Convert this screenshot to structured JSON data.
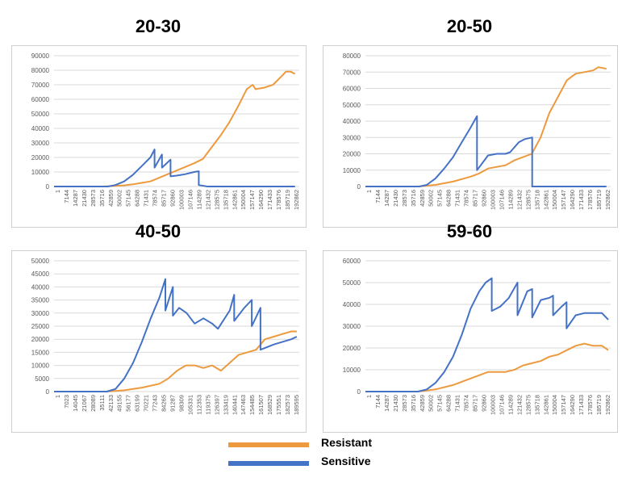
{
  "colors": {
    "resistant": "#ED9A3E",
    "sensitive": "#4472C4",
    "grid": "#D9D9D9",
    "axis": "#595959"
  },
  "legend": [
    {
      "label": "Resistant",
      "color": "#ED9A3E"
    },
    {
      "label": "Sensitive",
      "color": "#4472C4"
    }
  ],
  "chart_data": [
    {
      "type": "line",
      "title": "20-30",
      "xlabel": "",
      "ylabel": "",
      "grid": true,
      "ylim": [
        0,
        90000
      ],
      "yticks": [
        0,
        10000,
        20000,
        30000,
        40000,
        50000,
        60000,
        70000,
        80000,
        90000
      ],
      "x_range": [
        1,
        200000
      ],
      "x_tick_labels": [
        "1",
        "7144",
        "14287",
        "21430",
        "28573",
        "35716",
        "42859",
        "50002",
        "57145",
        "64288",
        "71431",
        "78574",
        "85717",
        "92860",
        "100003",
        "107146",
        "114289",
        "121432",
        "128575",
        "135718",
        "142861",
        "150004",
        "157147",
        "164290",
        "171433",
        "178576",
        "185719",
        "192862"
      ],
      "series": [
        {
          "name": "Resistant",
          "color": "#ED9A3E",
          "x": [
            1,
            40000,
            57145,
            64288,
            71431,
            78574,
            85717,
            92860,
            100003,
            107146,
            114289,
            121432,
            128575,
            135718,
            142861,
            150004,
            157147,
            162000,
            164290,
            171433,
            178576,
            185719,
            189000,
            193000,
            196500
          ],
          "y": [
            0,
            0,
            800,
            1500,
            2500,
            3500,
            6000,
            8500,
            11000,
            13500,
            16000,
            19000,
            27000,
            35000,
            44000,
            55000,
            67000,
            70000,
            67000,
            68000,
            70000,
            76000,
            79000,
            79000,
            77500
          ]
        },
        {
          "name": "Sensitive",
          "color": "#4472C4",
          "x": [
            1,
            44000,
            50002,
            57145,
            64288,
            71431,
            78574,
            82000,
            82001,
            88000,
            88001,
            95000,
            95001,
            100003,
            107146,
            114289,
            118000,
            118001,
            125000,
            128575,
            196500
          ],
          "y": [
            0,
            0,
            1000,
            3500,
            8000,
            14000,
            20000,
            25500,
            13000,
            22000,
            13000,
            18500,
            7000,
            7500,
            8500,
            10000,
            10500,
            1000,
            0,
            0,
            0
          ]
        }
      ]
    },
    {
      "type": "line",
      "title": "20-50",
      "xlabel": "",
      "ylabel": "",
      "grid": true,
      "ylim": [
        0,
        80000
      ],
      "yticks": [
        0,
        10000,
        20000,
        30000,
        40000,
        50000,
        60000,
        70000,
        80000
      ],
      "x_range": [
        1,
        200000
      ],
      "x_tick_labels": [
        "1",
        "7144",
        "14287",
        "21430",
        "28573",
        "35716",
        "42859",
        "50002",
        "57145",
        "64288",
        "71431",
        "78574",
        "85717",
        "92860",
        "100003",
        "107146",
        "114289",
        "121432",
        "128575",
        "135718",
        "142861",
        "150004",
        "157147",
        "164290",
        "171433",
        "178576",
        "185719",
        "192862"
      ],
      "series": [
        {
          "name": "Resistant",
          "color": "#ED9A3E",
          "x": [
            1,
            42859,
            57145,
            71431,
            85717,
            92860,
            100003,
            107146,
            114289,
            121432,
            128575,
            135718,
            142861,
            150004,
            157147,
            164290,
            171433,
            178576,
            185719,
            190000,
            196500
          ],
          "y": [
            0,
            0,
            1000,
            3000,
            6000,
            8000,
            11000,
            12000,
            13000,
            16000,
            18000,
            20000,
            30000,
            45000,
            55000,
            65000,
            69000,
            70000,
            71000,
            73000,
            72000
          ]
        },
        {
          "name": "Sensitive",
          "color": "#4472C4",
          "x": [
            1,
            44000,
            50002,
            57145,
            64288,
            71431,
            78574,
            85717,
            91000,
            91001,
            100003,
            107146,
            114289,
            118000,
            125000,
            130000,
            136000,
            136001,
            150004,
            151000,
            196500
          ],
          "y": [
            0,
            0,
            1000,
            5000,
            11000,
            18000,
            27000,
            36000,
            43000,
            10000,
            19000,
            20000,
            20000,
            21000,
            27000,
            29000,
            30000,
            0,
            0,
            0,
            0
          ]
        }
      ]
    },
    {
      "type": "line",
      "title": "40-50",
      "xlabel": "",
      "ylabel": "",
      "grid": true,
      "ylim": [
        0,
        50000
      ],
      "yticks": [
        0,
        5000,
        10000,
        15000,
        20000,
        25000,
        30000,
        35000,
        40000,
        45000,
        50000
      ],
      "x_range": [
        1,
        196000
      ],
      "x_tick_labels": [
        "1",
        "7023",
        "14045",
        "21067",
        "28089",
        "35111",
        "42133",
        "49155",
        "56177",
        "63199",
        "70221",
        "77243",
        "84265",
        "91287",
        "98309",
        "105331",
        "112353",
        "119375",
        "126397",
        "133419",
        "140441",
        "147463",
        "154485",
        "161507",
        "168529",
        "175551",
        "182573",
        "189595"
      ],
      "series": [
        {
          "name": "Resistant",
          "color": "#ED9A3E",
          "x": [
            1,
            42133,
            56177,
            70221,
            84265,
            91287,
            98309,
            105331,
            112353,
            119375,
            126397,
            133419,
            140441,
            147463,
            154485,
            161507,
            168529,
            175551,
            182573,
            189595,
            194000
          ],
          "y": [
            0,
            0,
            500,
            1500,
            3000,
            5000,
            8000,
            10000,
            10000,
            9000,
            10000,
            8000,
            11000,
            14000,
            15000,
            16000,
            20000,
            21000,
            22000,
            23000,
            23000
          ]
        },
        {
          "name": "Sensitive",
          "color": "#4472C4",
          "x": [
            1,
            42133,
            49155,
            56177,
            63199,
            70221,
            77243,
            84265,
            89000,
            89001,
            95000,
            95001,
            100000,
            106000,
            112353,
            119375,
            126397,
            131000,
            140441,
            144000,
            144001,
            152000,
            158000,
            158001,
            165000,
            165001,
            175551,
            182573,
            189595,
            194000
          ],
          "y": [
            0,
            0,
            1000,
            5000,
            11000,
            19000,
            28000,
            36000,
            43000,
            31000,
            40000,
            29000,
            32000,
            30000,
            26000,
            28000,
            26000,
            24000,
            31000,
            37000,
            27000,
            32000,
            35000,
            25000,
            32000,
            16000,
            18000,
            19000,
            20000,
            21000
          ]
        }
      ]
    },
    {
      "type": "line",
      "title": "59-60",
      "xlabel": "",
      "ylabel": "",
      "grid": true,
      "ylim": [
        0,
        60000
      ],
      "yticks": [
        0,
        10000,
        20000,
        30000,
        40000,
        50000,
        60000
      ],
      "x_range": [
        1,
        200000
      ],
      "x_tick_labels": [
        "1",
        "7144",
        "14287",
        "21430",
        "28573",
        "35716",
        "42859",
        "50002",
        "57145",
        "64288",
        "71431",
        "78574",
        "85717",
        "92860",
        "100003",
        "107146",
        "114289",
        "121432",
        "128575",
        "135718",
        "142861",
        "150004",
        "157147",
        "164290",
        "171433",
        "178576",
        "185719",
        "192862"
      ],
      "series": [
        {
          "name": "Resistant",
          "color": "#ED9A3E",
          "x": [
            1,
            42859,
            57145,
            71431,
            85717,
            100003,
            114289,
            121432,
            128575,
            135718,
            142861,
            150004,
            157147,
            164290,
            171433,
            178576,
            185719,
            192862,
            198000
          ],
          "y": [
            0,
            0,
            1000,
            3000,
            6000,
            9000,
            9000,
            10000,
            12000,
            13000,
            14000,
            16000,
            17000,
            19000,
            21000,
            22000,
            21000,
            21000,
            19000
          ]
        },
        {
          "name": "Sensitive",
          "color": "#4472C4",
          "x": [
            1,
            42859,
            50002,
            57145,
            64288,
            71431,
            78574,
            85717,
            92860,
            98000,
            103000,
            103001,
            110000,
            117000,
            124000,
            124001,
            132000,
            136000,
            136001,
            143000,
            150004,
            153000,
            153001,
            160000,
            164000,
            164001,
            171433,
            178576,
            185719,
            192862,
            198000
          ],
          "y": [
            0,
            0,
            1000,
            4000,
            9000,
            16000,
            26000,
            38000,
            46000,
            50000,
            52000,
            37000,
            39000,
            43000,
            50000,
            35000,
            46000,
            47000,
            34000,
            42000,
            43000,
            44000,
            35000,
            39000,
            41000,
            29000,
            35000,
            36000,
            36000,
            36000,
            33000
          ]
        }
      ]
    }
  ]
}
